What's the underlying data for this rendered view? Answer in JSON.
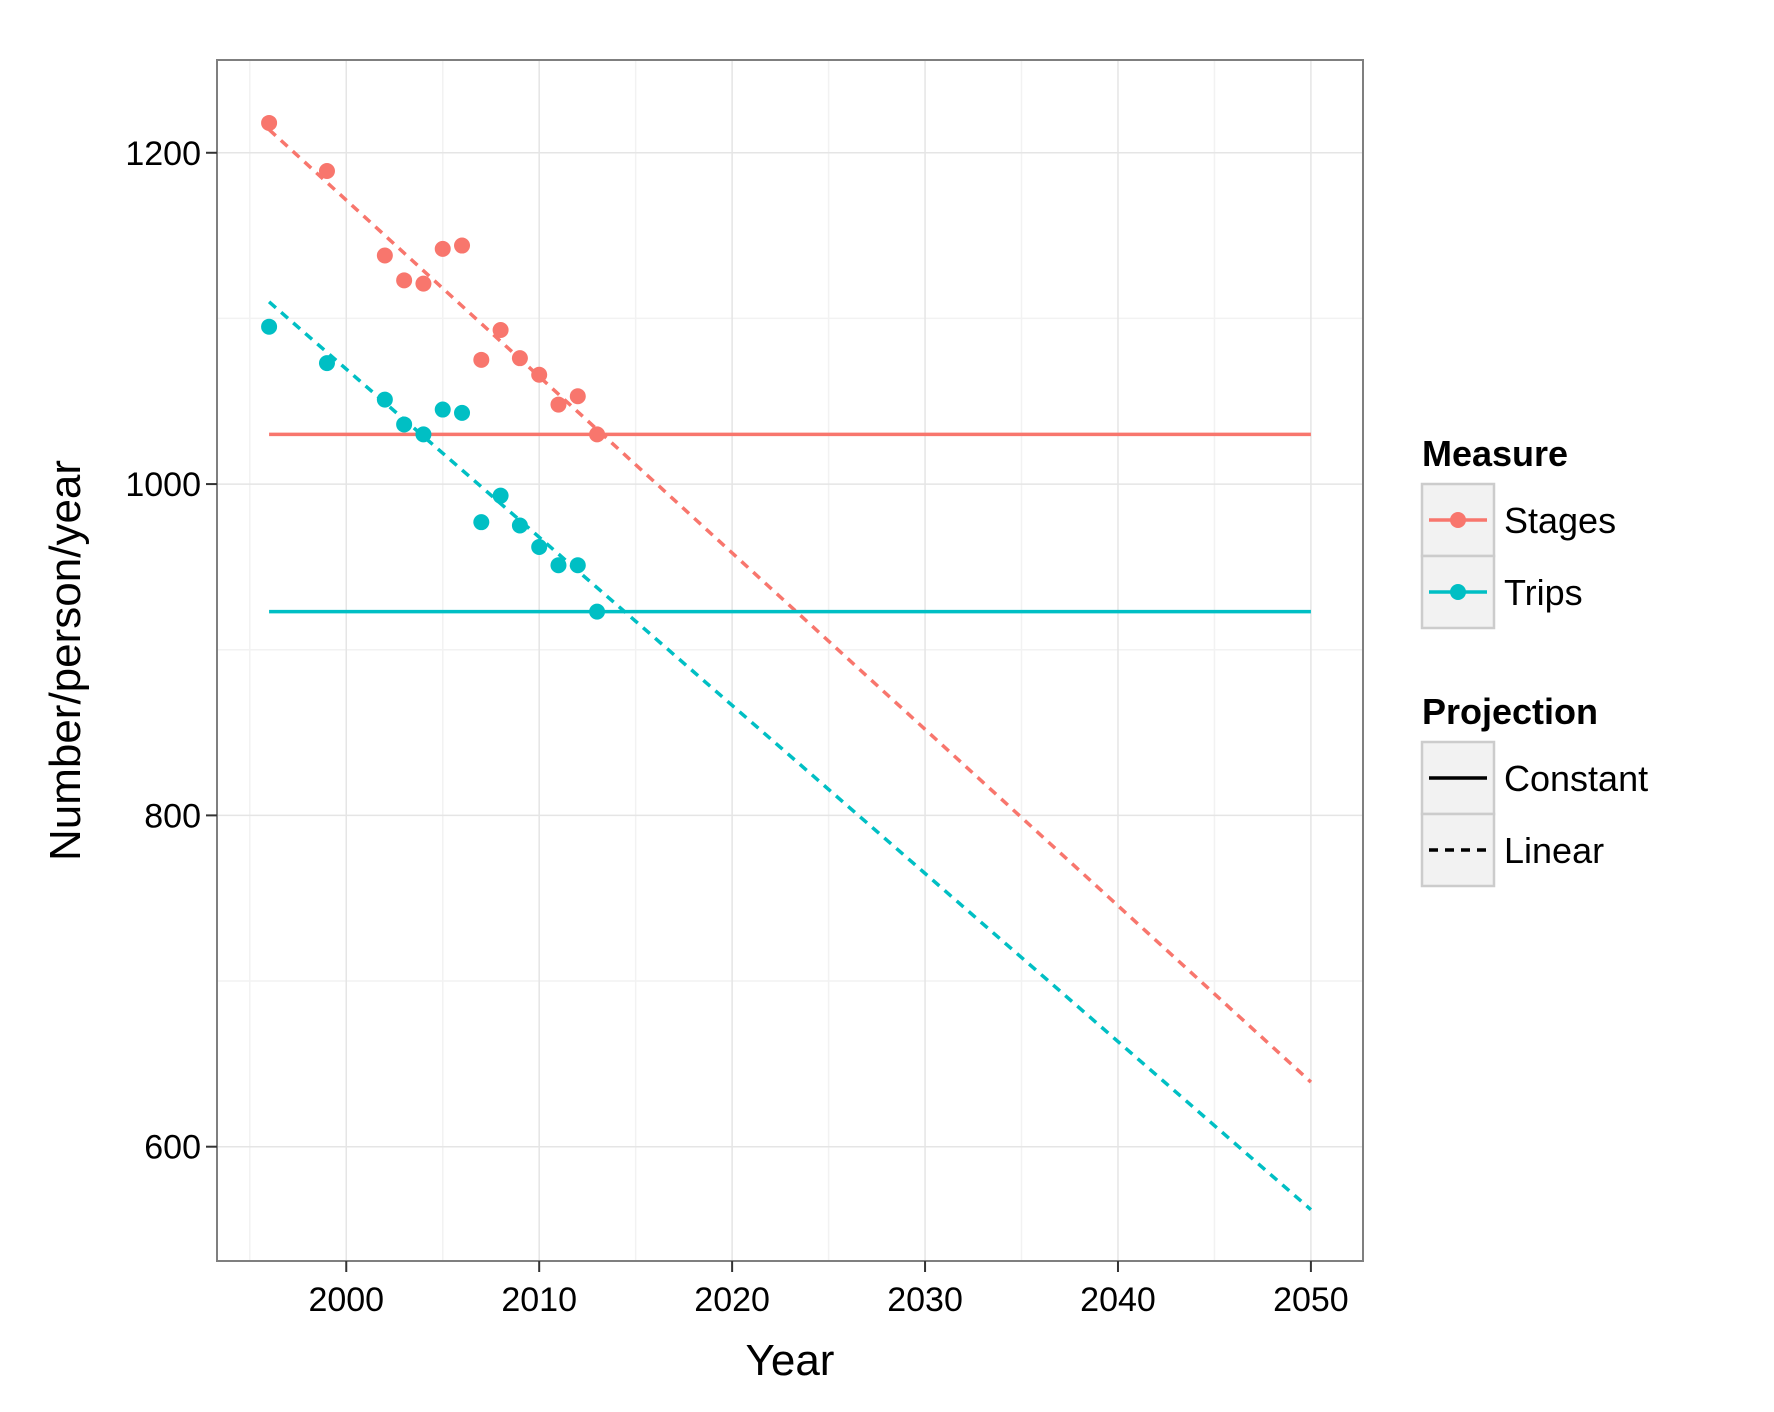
{
  "chart_data": {
    "type": "scatter",
    "xlabel": "Year",
    "ylabel": "Number/person/year",
    "xlim": [
      1993.3,
      2052.7
    ],
    "ylim": [
      531,
      1256
    ],
    "x_ticks": [
      2000,
      2010,
      2020,
      2030,
      2040,
      2050
    ],
    "y_ticks": [
      600,
      800,
      1000,
      1200
    ],
    "x_tick_labels": [
      "2000",
      "2010",
      "2020",
      "2030",
      "2040",
      "2050"
    ],
    "y_tick_labels": [
      "600",
      "800",
      "1000",
      "1200"
    ],
    "grid": true,
    "legend_position": "right",
    "series": [
      {
        "name": "Stages",
        "color": "#F8766D",
        "points": [
          {
            "x": 1996,
            "y": 1218
          },
          {
            "x": 1999,
            "y": 1189
          },
          {
            "x": 2002,
            "y": 1138
          },
          {
            "x": 2003,
            "y": 1123
          },
          {
            "x": 2004,
            "y": 1121
          },
          {
            "x": 2005,
            "y": 1142
          },
          {
            "x": 2006,
            "y": 1144
          },
          {
            "x": 2007,
            "y": 1075
          },
          {
            "x": 2008,
            "y": 1093
          },
          {
            "x": 2009,
            "y": 1076
          },
          {
            "x": 2010,
            "y": 1066
          },
          {
            "x": 2011,
            "y": 1048
          },
          {
            "x": 2012,
            "y": 1053
          },
          {
            "x": 2013,
            "y": 1030
          }
        ],
        "constant": {
          "x": [
            1996,
            2050
          ],
          "y": [
            1030,
            1030
          ]
        },
        "linear": {
          "x": [
            1996,
            2050
          ],
          "y": [
            1214,
            639
          ]
        }
      },
      {
        "name": "Trips",
        "color": "#00BFC4",
        "points": [
          {
            "x": 1996,
            "y": 1095
          },
          {
            "x": 1999,
            "y": 1073
          },
          {
            "x": 2002,
            "y": 1051
          },
          {
            "x": 2003,
            "y": 1036
          },
          {
            "x": 2004,
            "y": 1030
          },
          {
            "x": 2005,
            "y": 1045
          },
          {
            "x": 2006,
            "y": 1043
          },
          {
            "x": 2007,
            "y": 977
          },
          {
            "x": 2008,
            "y": 993
          },
          {
            "x": 2009,
            "y": 975
          },
          {
            "x": 2010,
            "y": 962
          },
          {
            "x": 2011,
            "y": 951
          },
          {
            "x": 2012,
            "y": 951
          },
          {
            "x": 2013,
            "y": 923
          }
        ],
        "constant": {
          "x": [
            1996,
            2050
          ],
          "y": [
            923,
            923
          ]
        },
        "linear": {
          "x": [
            1996,
            2050
          ],
          "y": [
            1110,
            562
          ]
        }
      }
    ],
    "legends": [
      {
        "title": "Measure",
        "entries": [
          {
            "label": "Stages",
            "color": "#F8766D",
            "key": "point-line"
          },
          {
            "label": "Trips",
            "color": "#00BFC4",
            "key": "point-line"
          }
        ]
      },
      {
        "title": "Projection",
        "entries": [
          {
            "label": "Constant",
            "color": "#000000",
            "key": "solid"
          },
          {
            "label": "Linear",
            "color": "#000000",
            "key": "dashed"
          }
        ]
      }
    ]
  }
}
